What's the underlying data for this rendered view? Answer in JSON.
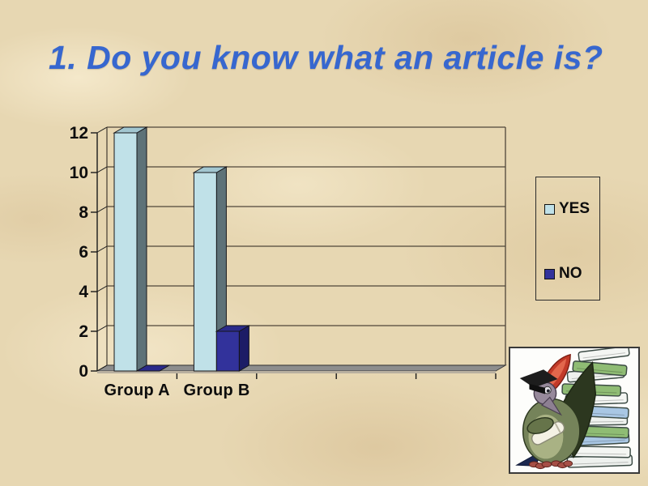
{
  "slide": {
    "title": "1. Do you know what an article is?"
  },
  "chart_data": {
    "type": "bar",
    "style": "3d",
    "title": "",
    "xlabel": "",
    "ylabel": "",
    "categories": [
      "Group A",
      "Group B"
    ],
    "series": [
      {
        "name": "YES",
        "values": [
          12,
          10
        ],
        "front": "#c0e1e8",
        "side": "#5e7278",
        "top": "#a2c6d0"
      },
      {
        "name": "NO",
        "values": [
          0,
          2
        ],
        "front": "#32329b",
        "side": "#1c1c66",
        "top": "#2a2a8a"
      }
    ],
    "ylim": [
      0,
      12
    ],
    "yticks": [
      0,
      2,
      4,
      6,
      8,
      10,
      12
    ],
    "x_axis_slots": 5,
    "grid": true,
    "legend_position": "right"
  },
  "colors": {
    "title": "#3767cf",
    "background": "#e7d7b2",
    "grid_line": "#4f463a",
    "axis": "#1a1a1a",
    "floor": "#8d8d8d",
    "floor_front": "#b9b0a0"
  }
}
